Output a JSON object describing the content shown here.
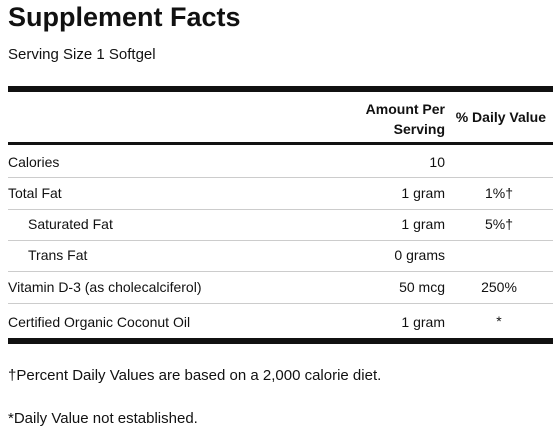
{
  "title": "Supplement Facts",
  "serving_size": "Serving Size 1 Softgel",
  "header": {
    "amount_line1": "Amount Per",
    "amount_line2": "Serving",
    "daily_value": "% Daily Value"
  },
  "rows": [
    {
      "name": "Calories",
      "amount": "10",
      "dv": ""
    },
    {
      "name": "Total Fat",
      "amount": "1 gram",
      "dv": "1%†"
    },
    {
      "name": "Saturated Fat",
      "amount": "1 gram",
      "dv": "5%†"
    },
    {
      "name": "Trans Fat",
      "amount": "0 grams",
      "dv": ""
    },
    {
      "name": "Vitamin D-3 (as cholecalciferol)",
      "amount": "50 mcg",
      "dv": "250%"
    },
    {
      "name": "Certified Organic Coconut Oil",
      "amount": "1 gram",
      "dv": "*"
    }
  ],
  "footnotes": {
    "percent_dv": "†Percent Daily Values are based on a 2,000 calorie diet.",
    "not_established": "*Daily Value not established."
  }
}
